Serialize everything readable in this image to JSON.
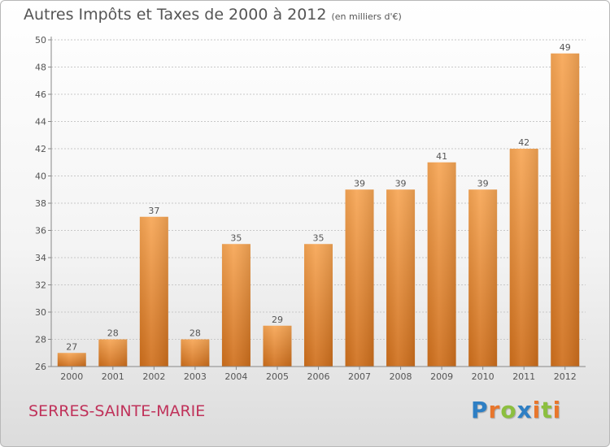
{
  "header": {
    "title": "Autres Impôts et Taxes de 2000 à 2012",
    "unit": "(en milliers d'€)"
  },
  "footer": {
    "commune": "SERRES-SAINTE-MARIE",
    "logo_letters": [
      {
        "char": "P",
        "color": "#2e7fc4"
      },
      {
        "char": "r",
        "color": "#e8762c"
      },
      {
        "char": "o",
        "color": "#8cbf3f"
      },
      {
        "char": "x",
        "color": "#2e7fc4"
      },
      {
        "char": "i",
        "color": "#e8762c"
      },
      {
        "char": "t",
        "color": "#8cbf3f"
      },
      {
        "char": "i",
        "color": "#e8762c"
      }
    ]
  },
  "chart_data": {
    "type": "bar",
    "categories": [
      "2000",
      "2001",
      "2002",
      "2003",
      "2004",
      "2005",
      "2006",
      "2007",
      "2008",
      "2009",
      "2010",
      "2011",
      "2012"
    ],
    "values": [
      27,
      28,
      37,
      28,
      35,
      29,
      35,
      39,
      39,
      41,
      39,
      42,
      49
    ],
    "ylim": [
      26,
      50
    ],
    "yticks": [
      26,
      28,
      30,
      32,
      34,
      36,
      38,
      40,
      42,
      44,
      46,
      48,
      50
    ],
    "grid": "horizontal-dashed",
    "bar_color_top": "#f7a655",
    "bar_color_bottom": "#cf6f1c"
  }
}
